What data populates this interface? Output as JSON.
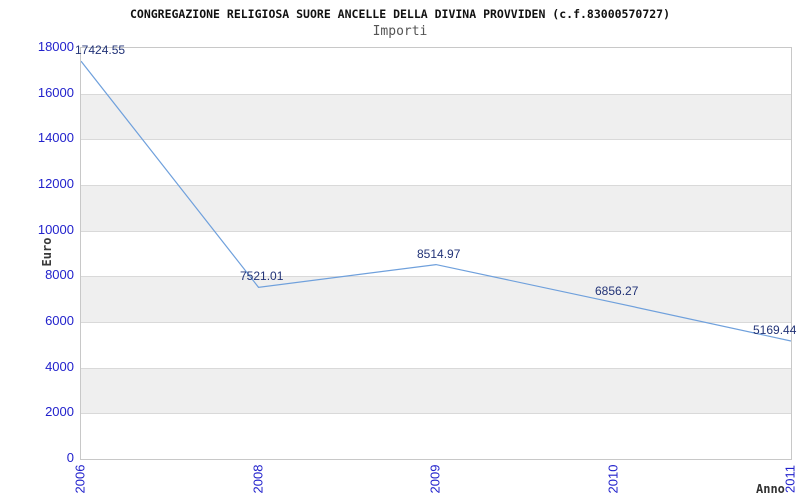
{
  "chart": {
    "title": "CONGREGAZIONE RELIGIOSA SUORE ANCELLE DELLA DIVINA PROVVIDEN (c.f.83000570727)",
    "subtitle": "Importi",
    "y_axis": {
      "title": "Euro",
      "tick_values": [
        0,
        2000,
        4000,
        6000,
        8000,
        10000,
        12000,
        14000,
        16000,
        18000
      ],
      "max": 18000
    },
    "x_axis": {
      "title": "Anno",
      "tick_labels": [
        "2006",
        "2008",
        "2009",
        "2010",
        "2011"
      ]
    },
    "colors": {
      "line": "#6fa0dc",
      "tick_label": "#2222cc",
      "point_label": "#223377",
      "band_gray": "#efefef",
      "gridline": "#d9d9d9",
      "plot_border": "#c8c8c8",
      "title": "#111111",
      "subtitle": "#555555",
      "axis_title": "#3a3a3a"
    }
  },
  "chart_data": {
    "type": "line",
    "x": [
      "2006",
      "2008",
      "2009",
      "2010",
      "2011"
    ],
    "values": [
      17424.55,
      7521.01,
      8514.97,
      6856.27,
      5169.44
    ],
    "point_labels": [
      "17424.55",
      "7521.01",
      "8514.97",
      "6856.27",
      "5169.44"
    ],
    "title": "Importi",
    "xlabel": "Anno",
    "ylabel": "Euro",
    "ylim": [
      0,
      18000
    ],
    "grid": "horizontal",
    "background_bands": "alternating gray every 2000 from 16000-14000 down to 4000-2000",
    "legend": "none"
  }
}
